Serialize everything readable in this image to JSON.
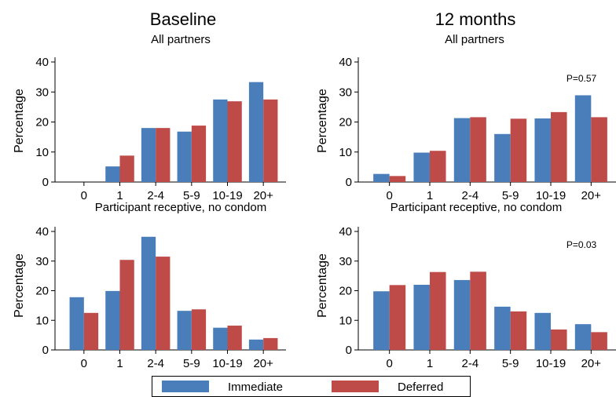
{
  "columns": {
    "left": "Baseline",
    "right": "12 months"
  },
  "chart_data": [
    {
      "type": "bar",
      "subtitle": "All partners",
      "ylabel": "Percentage",
      "ylim": [
        0,
        40
      ],
      "yticks": [
        0,
        10,
        20,
        30,
        40
      ],
      "categories": [
        "0",
        "1",
        "2-4",
        "5-9",
        "10-19",
        "20+"
      ],
      "series": [
        {
          "name": "Immediate",
          "values": [
            0,
            5.2,
            18,
            16.8,
            27.5,
            33.3
          ]
        },
        {
          "name": "Deferred",
          "values": [
            0,
            8.8,
            18,
            18.8,
            26.9,
            27.5
          ]
        }
      ],
      "annotation": ""
    },
    {
      "type": "bar",
      "subtitle": "All partners",
      "ylabel": "Percentage",
      "ylim": [
        0,
        40
      ],
      "yticks": [
        0,
        10,
        20,
        30,
        40
      ],
      "categories": [
        "0",
        "1",
        "2-4",
        "5-9",
        "10-19",
        "20+"
      ],
      "series": [
        {
          "name": "Immediate",
          "values": [
            2.7,
            9.8,
            21.3,
            16,
            21.2,
            28.9
          ]
        },
        {
          "name": "Deferred",
          "values": [
            2,
            10.4,
            21.6,
            21.1,
            23.3,
            21.6
          ]
        }
      ],
      "annotation": "P=0.57"
    },
    {
      "type": "bar",
      "subtitle": "Participant receptive, no condom",
      "ylabel": "Percentage",
      "ylim": [
        0,
        40
      ],
      "yticks": [
        0,
        10,
        20,
        30,
        40
      ],
      "categories": [
        "0",
        "1",
        "2-4",
        "5-9",
        "10-19",
        "20+"
      ],
      "series": [
        {
          "name": "Immediate",
          "values": [
            17.8,
            19.9,
            38.2,
            13.2,
            7.5,
            3.5
          ]
        },
        {
          "name": "Deferred",
          "values": [
            12.5,
            30.4,
            31.5,
            13.7,
            8.2,
            4
          ]
        }
      ],
      "annotation": ""
    },
    {
      "type": "bar",
      "subtitle": "Participant receptive, no condom",
      "ylabel": "Percentage",
      "ylim": [
        0,
        40
      ],
      "yticks": [
        0,
        10,
        20,
        30,
        40
      ],
      "categories": [
        "0",
        "1",
        "2-4",
        "5-9",
        "10-19",
        "20+"
      ],
      "series": [
        {
          "name": "Immediate",
          "values": [
            19.8,
            22,
            23.6,
            14.6,
            12.5,
            8.7
          ]
        },
        {
          "name": "Deferred",
          "values": [
            21.9,
            26.3,
            26.4,
            13,
            6.9,
            6
          ]
        }
      ],
      "annotation": "P=0.03"
    }
  ],
  "legend": [
    {
      "label": "Immediate",
      "color": "#4a7ebb"
    },
    {
      "label": "Deferred",
      "color": "#be4b48"
    }
  ],
  "colors": {
    "immediate": "#4a7ebb",
    "deferred": "#be4b48"
  }
}
